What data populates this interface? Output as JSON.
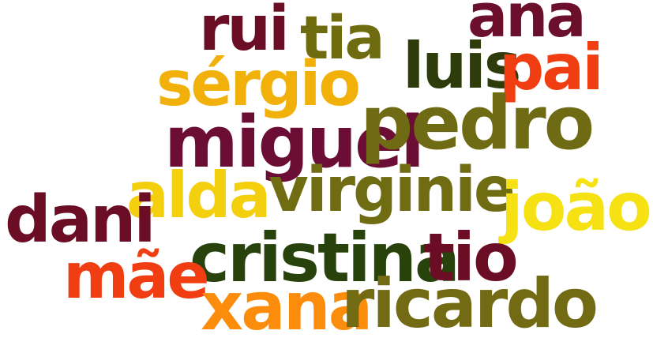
{
  "words": {
    "rui": "rui",
    "tia": "tia",
    "ana": "ana",
    "luis": "luis",
    "pai": "pai",
    "sergio": "sérgio",
    "miguel": "miguel",
    "pedro": "pedro",
    "alda": "alda",
    "virginie": "virginie",
    "joao": "joão",
    "dani": "dani",
    "cristina": "cristina",
    "tio": "tio",
    "mae": "mãe",
    "xana": "xana",
    "ricardo": "ricardo"
  },
  "colors": {
    "maroon": "#6b0d24",
    "olive": "#6f6c10",
    "dark_green": "#2e3b0a",
    "red_orange": "#f03e12",
    "amber": "#f2b10a",
    "yellow": "#f4cf0d",
    "bright_yellow": "#f6e212",
    "orange": "#fb8c0c"
  }
}
